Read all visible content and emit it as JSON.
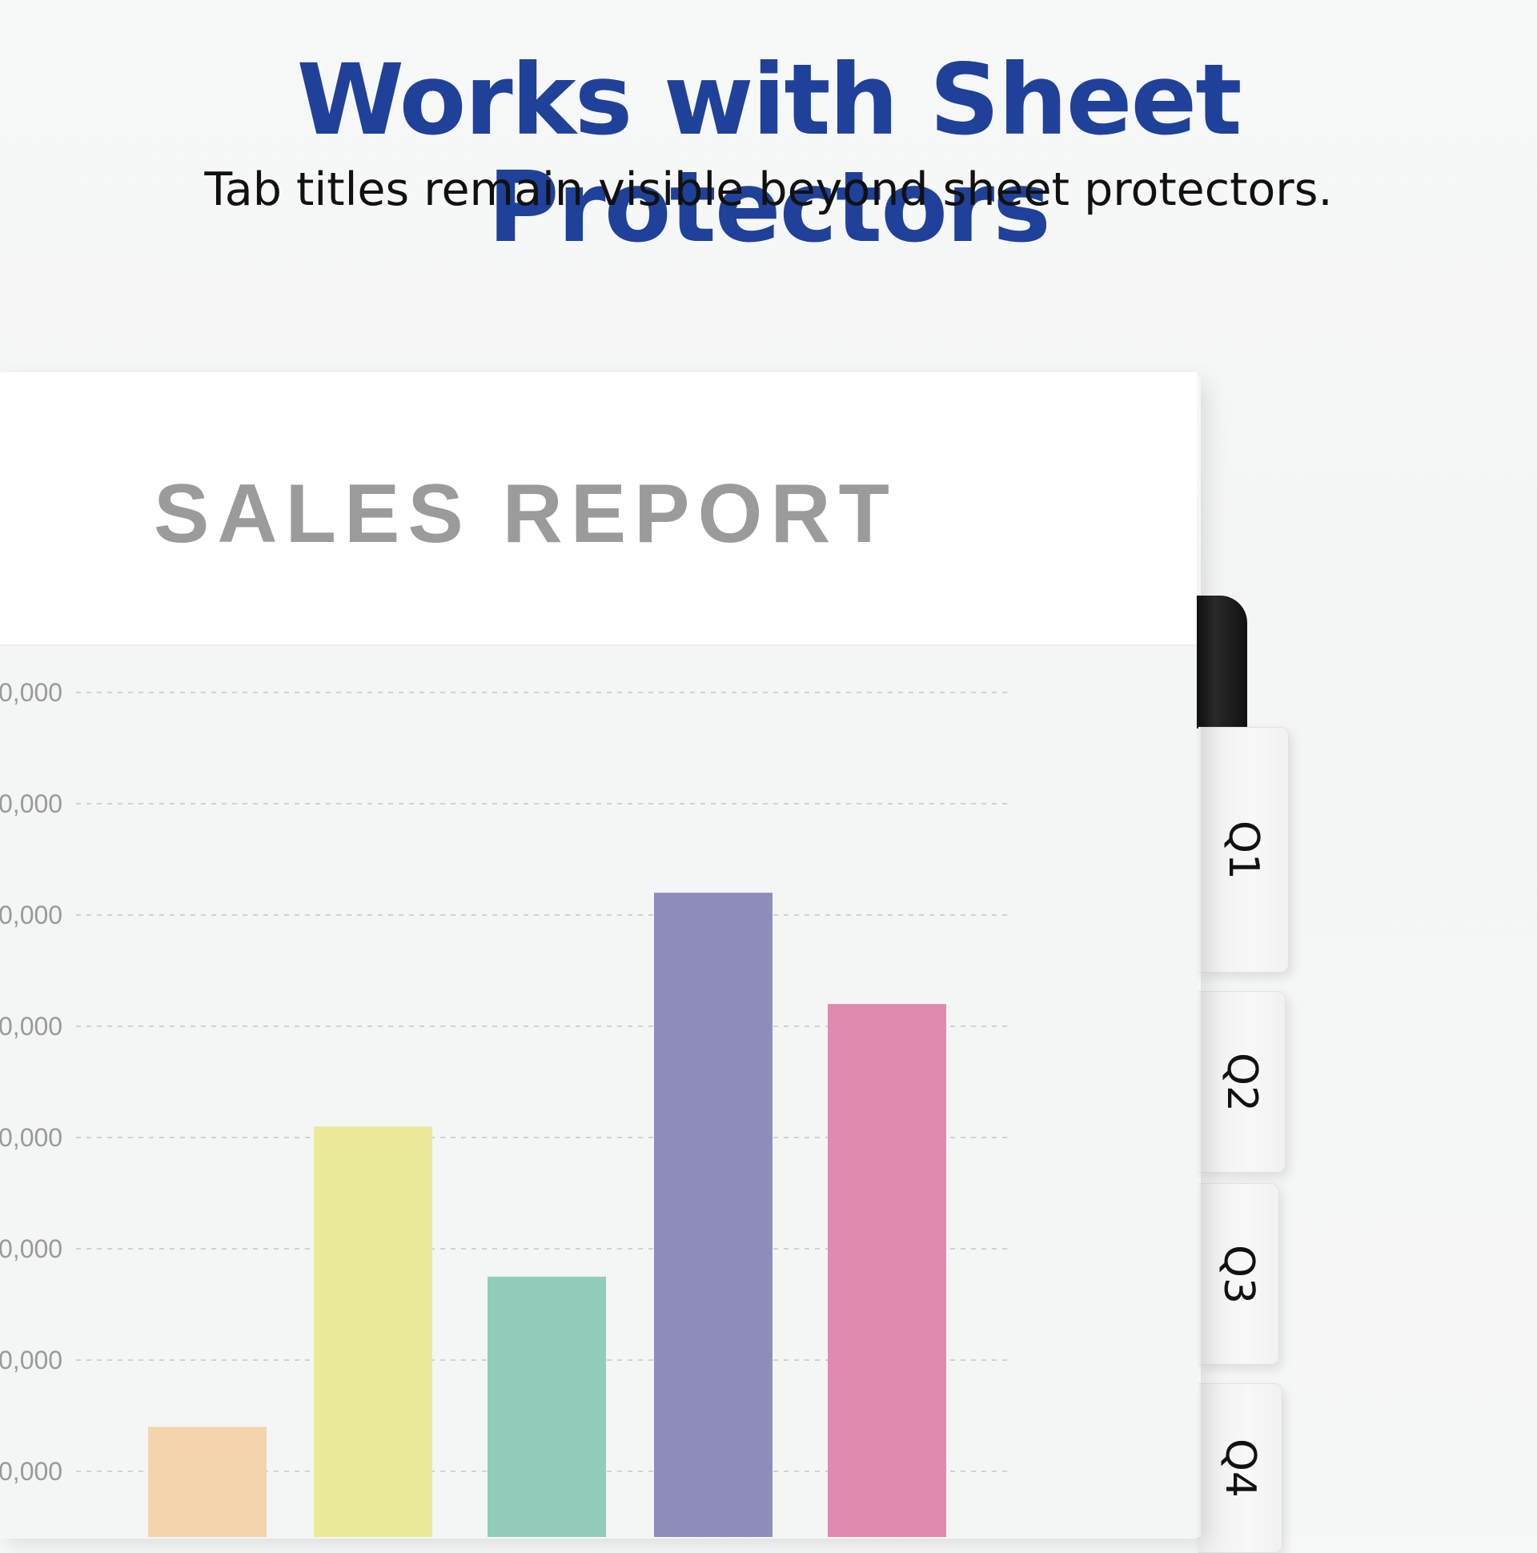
{
  "header": {
    "title": "Works with Sheet Protectors",
    "subtitle": "Tab titles remain visible beyond sheet protectors."
  },
  "sheet": {
    "title": "SALES REPORT"
  },
  "tabs": [
    {
      "label": "Q1"
    },
    {
      "label": "Q2"
    },
    {
      "label": "Q3"
    },
    {
      "label": "Q4"
    }
  ],
  "colors": {
    "headline": "#1f419a",
    "bars": [
      "#f4d4ad",
      "#ebea9a",
      "#92cdbb",
      "#8e8cbd",
      "#e08ab0"
    ]
  },
  "chart_data": {
    "type": "bar",
    "ytick_labels": [
      "0,000",
      "0,000",
      "0,000",
      "0,000",
      "0,000",
      "0,000",
      "0,000",
      "0,000"
    ],
    "ytick_values": [
      1,
      2,
      3,
      4,
      5,
      6,
      7,
      8
    ],
    "values": [
      1.4,
      4.1,
      2.75,
      6.2,
      5.2
    ],
    "ylim": [
      0.4,
      8.6
    ],
    "grid": true
  }
}
